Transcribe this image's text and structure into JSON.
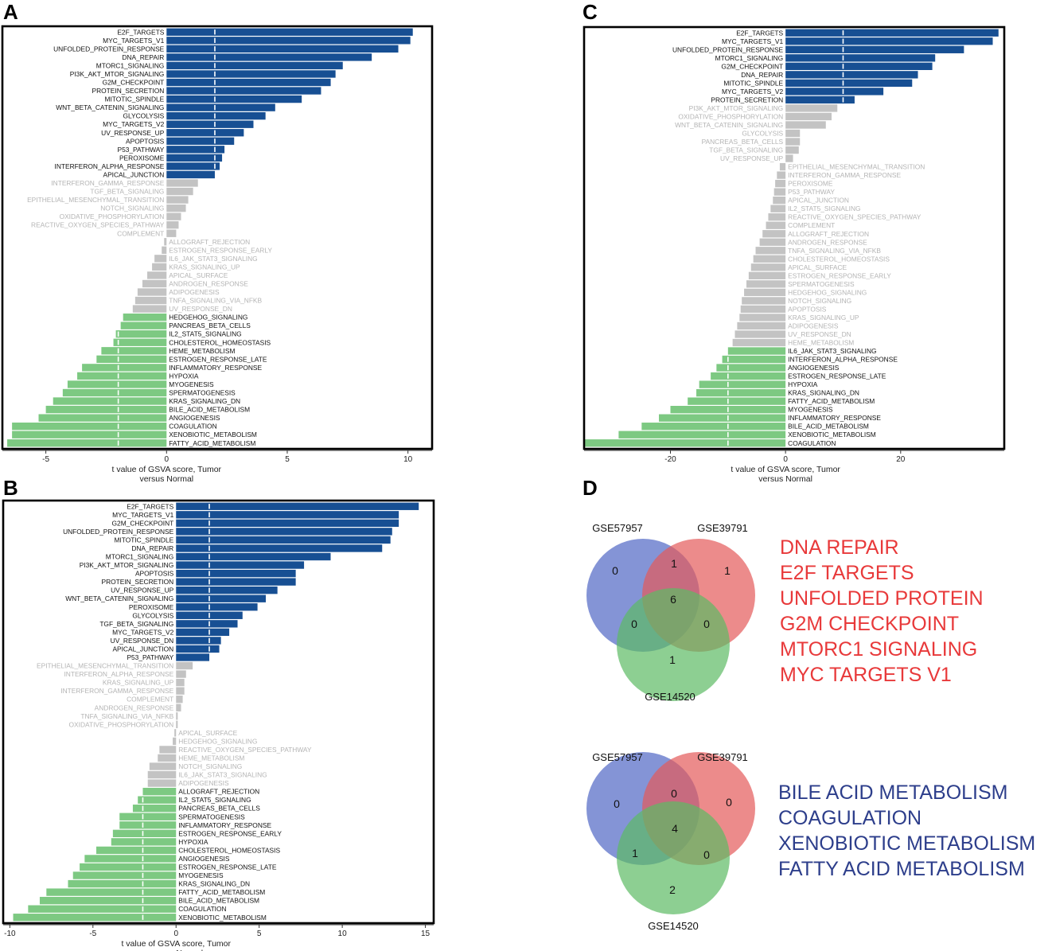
{
  "panels": [
    {
      "letter": "A"
    },
    {
      "letter": "B"
    },
    {
      "letter": "C"
    },
    {
      "letter": "D"
    }
  ],
  "colors": {
    "up": "#174f93",
    "down": "#7dc982",
    "ns": "#c3c3c3",
    "nsLabel": "#b4b4b4",
    "sigLabel": "#111111",
    "threshold": "#ffffff",
    "upText": "#e8393a",
    "downText": "#2d3e8b",
    "vennBlue": "rgba(80,102,196,0.70)",
    "vennRed": "rgba(228,90,90,0.70)",
    "vennGreen": "rgba(92,186,100,0.70)"
  },
  "chart_data": [
    {
      "panel": "A",
      "type": "bar",
      "orientation": "horizontal",
      "xlabel": "t value of GSVA score, Tumor\nversus Normal",
      "xlim": [
        -6.8,
        11
      ],
      "xticks": [
        -5,
        0,
        5,
        10
      ],
      "xtick_labels": [
        "-5",
        "0",
        "5",
        "10"
      ],
      "threshold": 2,
      "categories": [
        "E2F_TARGETS",
        "MYC_TARGETS_V1",
        "UNFOLDED_PROTEIN_RESPONSE",
        "DNA_REPAIR",
        "MTORC1_SIGNALING",
        "PI3K_AKT_MTOR_SIGNALING",
        "G2M_CHECKPOINT",
        "PROTEIN_SECRETION",
        "MITOTIC_SPINDLE",
        "WNT_BETA_CATENIN_SIGNALING",
        "GLYCOLYSIS",
        "MYC_TARGETS_V2",
        "UV_RESPONSE_UP",
        "APOPTOSIS",
        "P53_PATHWAY",
        "PEROXISOME",
        "INTERFERON_ALPHA_RESPONSE",
        "APICAL_JUNCTION",
        "INTERFERON_GAMMA_RESPONSE",
        "TGF_BETA_SIGNALING",
        "EPITHELIAL_MESENCHYMAL_TRANSITION",
        "NOTCH_SIGNALING",
        "OXIDATIVE_PHOSPHORYLATION",
        "REACTIVE_OXYGEN_SPECIES_PATHWAY",
        "COMPLEMENT",
        "ALLOGRAFT_REJECTION",
        "ESTROGEN_RESPONSE_EARLY",
        "IL6_JAK_STAT3_SIGNALING",
        "KRAS_SIGNALING_UP",
        "APICAL_SURFACE",
        "ANDROGEN_RESPONSE",
        "ADIPOGENESIS",
        "TNFA_SIGNALING_VIA_NFKB",
        "UV_RESPONSE_DN",
        "HEDGEHOG_SIGNALING",
        "PANCREAS_BETA_CELLS",
        "IL2_STAT5_SIGNALING",
        "CHOLESTEROL_HOMEOSTASIS",
        "HEME_METABOLISM",
        "ESTROGEN_RESPONSE_LATE",
        "INFLAMMATORY_RESPONSE",
        "HYPOXIA",
        "MYOGENESIS",
        "SPERMATOGENESIS",
        "KRAS_SIGNALING_DN",
        "BILE_ACID_METABOLISM",
        "ANGIOGENESIS",
        "COAGULATION",
        "XENOBIOTIC_METABOLISM",
        "FATTY_ACID_METABOLISM"
      ],
      "values": [
        10.2,
        10.1,
        9.6,
        8.5,
        7.3,
        7.0,
        6.8,
        6.4,
        5.6,
        4.5,
        4.1,
        3.6,
        3.2,
        2.8,
        2.4,
        2.3,
        2.2,
        2.0,
        1.3,
        1.1,
        0.9,
        0.8,
        0.6,
        0.5,
        0.4,
        -0.1,
        -0.2,
        -0.5,
        -0.6,
        -0.8,
        -1.0,
        -1.2,
        -1.3,
        -1.4,
        -1.8,
        -1.9,
        -2.1,
        -2.2,
        -2.7,
        -2.9,
        -3.5,
        -3.7,
        -4.1,
        -4.3,
        -4.7,
        -5.0,
        -5.3,
        -6.4,
        -6.4,
        -6.6
      ],
      "groups": [
        "up",
        "up",
        "up",
        "up",
        "up",
        "up",
        "up",
        "up",
        "up",
        "up",
        "up",
        "up",
        "up",
        "up",
        "up",
        "up",
        "up",
        "up",
        "ns",
        "ns",
        "ns",
        "ns",
        "ns",
        "ns",
        "ns",
        "ns",
        "ns",
        "ns",
        "ns",
        "ns",
        "ns",
        "ns",
        "ns",
        "ns",
        "down",
        "down",
        "down",
        "down",
        "down",
        "down",
        "down",
        "down",
        "down",
        "down",
        "down",
        "down",
        "down",
        "down",
        "down",
        "down"
      ]
    },
    {
      "panel": "B",
      "type": "bar",
      "orientation": "horizontal",
      "xlabel": "t value of GSVA score, Tumor\nversus Normal",
      "xlim": [
        -10.4,
        15.5
      ],
      "xticks": [
        -10,
        -5,
        0,
        5,
        10,
        15
      ],
      "xtick_labels": [
        "-10",
        "-5",
        "0",
        "5",
        "10",
        "15"
      ],
      "threshold": 2,
      "categories": [
        "E2F_TARGETS",
        "MYC_TARGETS_V1",
        "G2M_CHECKPOINT",
        "UNFOLDED_PROTEIN_RESPONSE",
        "MITOTIC_SPINDLE",
        "DNA_REPAIR",
        "MTORC1_SIGNALING",
        "PI3K_AKT_MTOR_SIGNALING",
        "APOPTOSIS",
        "PROTEIN_SECRETION",
        "UV_RESPONSE_UP",
        "WNT_BETA_CATENIN_SIGNALING",
        "PEROXISOME",
        "GLYCOLYSIS",
        "TGF_BETA_SIGNALING",
        "MYC_TARGETS_V2",
        "UV_RESPONSE_DN",
        "APICAL_JUNCTION",
        "P53_PATHWAY",
        "EPITHELIAL_MESENCHYMAL_TRANSITION",
        "INTERFERON_ALPHA_RESPONSE",
        "KRAS_SIGNALING_UP",
        "INTERFERON_GAMMA_RESPONSE",
        "COMPLEMENT",
        "ANDROGEN_RESPONSE",
        "TNFA_SIGNALING_VIA_NFKB",
        "OXIDATIVE_PHOSPHORYLATION",
        "APICAL_SURFACE",
        "HEDGEHOG_SIGNALING",
        "REACTIVE_OXYGEN_SPECIES_PATHWAY",
        "HEME_METABOLISM",
        "NOTCH_SIGNALING",
        "IL6_JAK_STAT3_SIGNALING",
        "ADIPOGENESIS",
        "ALLOGRAFT_REJECTION",
        "IL2_STAT5_SIGNALING",
        "PANCREAS_BETA_CELLS",
        "SPERMATOGENESIS",
        "INFLAMMATORY_RESPONSE",
        "ESTROGEN_RESPONSE_EARLY",
        "HYPOXIA",
        "CHOLESTEROL_HOMEOSTASIS",
        "ANGIOGENESIS",
        "ESTROGEN_RESPONSE_LATE",
        "MYOGENESIS",
        "KRAS_SIGNALING_DN",
        "FATTY_ACID_METABOLISM",
        "BILE_ACID_METABOLISM",
        "COAGULATION",
        "XENOBIOTIC_METABOLISM"
      ],
      "values": [
        14.6,
        13.4,
        13.4,
        13.0,
        12.9,
        12.4,
        9.3,
        7.7,
        7.2,
        7.2,
        6.1,
        5.4,
        4.9,
        4.0,
        3.7,
        3.2,
        2.7,
        2.6,
        2.0,
        1.0,
        0.6,
        0.5,
        0.5,
        0.4,
        0.3,
        0.1,
        0.1,
        -0.1,
        -0.2,
        -1.0,
        -1.1,
        -1.6,
        -1.7,
        -1.7,
        -2.0,
        -2.3,
        -2.6,
        -3.4,
        -3.4,
        -3.8,
        -3.9,
        -4.8,
        -5.5,
        -5.8,
        -6.2,
        -6.5,
        -7.8,
        -8.2,
        -8.9,
        -9.8
      ],
      "groups": [
        "up",
        "up",
        "up",
        "up",
        "up",
        "up",
        "up",
        "up",
        "up",
        "up",
        "up",
        "up",
        "up",
        "up",
        "up",
        "up",
        "up",
        "up",
        "up",
        "ns",
        "ns",
        "ns",
        "ns",
        "ns",
        "ns",
        "ns",
        "ns",
        "ns",
        "ns",
        "ns",
        "ns",
        "ns",
        "ns",
        "ns",
        "down",
        "down",
        "down",
        "down",
        "down",
        "down",
        "down",
        "down",
        "down",
        "down",
        "down",
        "down",
        "down",
        "down",
        "down",
        "down"
      ]
    },
    {
      "panel": "C",
      "type": "bar",
      "orientation": "horizontal",
      "xlabel": "t value of GSVA score, Tumor\nversus Normal",
      "xlim": [
        -35,
        38
      ],
      "xticks": [
        -20,
        0,
        20
      ],
      "xtick_labels": [
        "-20",
        "0",
        "20"
      ],
      "threshold": 10,
      "categories": [
        "E2F_TARGETS",
        "MYC_TARGETS_V1",
        "UNFOLDED_PROTEIN_RESPONSE",
        "MTORC1_SIGNALING",
        "G2M_CHECKPOINT",
        "DNA_REPAIR",
        "MITOTIC_SPINDLE",
        "MYC_TARGETS_V2",
        "PROTEIN_SECRETION",
        "PI3K_AKT_MTOR_SIGNALING",
        "OXIDATIVE_PHOSPHORYLATION",
        "WNT_BETA_CATENIN_SIGNALING",
        "GLYCOLYSIS",
        "PANCREAS_BETA_CELLS",
        "TGF_BETA_SIGNALING",
        "UV_RESPONSE_UP",
        "EPITHELIAL_MESENCHYMAL_TRANSITION",
        "INTERFERON_GAMMA_RESPONSE",
        "PEROXISOME",
        "P53_PATHWAY",
        "APICAL_JUNCTION",
        "IL2_STAT5_SIGNALING",
        "REACTIVE_OXYGEN_SPECIES_PATHWAY",
        "COMPLEMENT",
        "ALLOGRAFT_REJECTION",
        "ANDROGEN_RESPONSE",
        "TNFA_SIGNALING_VIA_NFKB",
        "CHOLESTEROL_HOMEOSTASIS",
        "APICAL_SURFACE",
        "ESTROGEN_RESPONSE_EARLY",
        "SPERMATOGENESIS",
        "HEDGEHOG_SIGNALING",
        "NOTCH_SIGNALING",
        "APOPTOSIS",
        "KRAS_SIGNALING_UP",
        "ADIPOGENESIS",
        "UV_RESPONSE_DN",
        "HEME_METABOLISM",
        "IL6_JAK_STAT3_SIGNALING",
        "INTERFERON_ALPHA_RESPONSE",
        "ANGIOGENESIS",
        "ESTROGEN_RESPONSE_LATE",
        "HYPOXIA",
        "KRAS_SIGNALING_DN",
        "FATTY_ACID_METABOLISM",
        "MYOGENESIS",
        "INFLAMMATORY_RESPONSE",
        "BILE_ACID_METABOLISM",
        "XENOBIOTIC_METABOLISM",
        "COAGULATION"
      ],
      "values": [
        37.0,
        36.0,
        31.0,
        26.0,
        25.5,
        23.0,
        22.0,
        17.0,
        12.0,
        9.0,
        8.0,
        7.0,
        2.5,
        2.5,
        2.3,
        1.3,
        -1.0,
        -1.5,
        -1.8,
        -2.0,
        -2.2,
        -2.6,
        -3.0,
        -3.4,
        -4.0,
        -4.5,
        -5.2,
        -5.6,
        -6.0,
        -6.4,
        -6.8,
        -7.2,
        -7.6,
        -7.8,
        -8.0,
        -8.4,
        -8.8,
        -9.2,
        -10.0,
        -11.0,
        -12.0,
        -13.0,
        -15.0,
        -15.5,
        -17.0,
        -20.0,
        -22.0,
        -25.0,
        -29.0,
        -35.0
      ],
      "groups": [
        "up",
        "up",
        "up",
        "up",
        "up",
        "up",
        "up",
        "up",
        "up",
        "ns",
        "ns",
        "ns",
        "ns",
        "ns",
        "ns",
        "ns",
        "ns",
        "ns",
        "ns",
        "ns",
        "ns",
        "ns",
        "ns",
        "ns",
        "ns",
        "ns",
        "ns",
        "ns",
        "ns",
        "ns",
        "ns",
        "ns",
        "ns",
        "ns",
        "ns",
        "ns",
        "ns",
        "ns",
        "down",
        "down",
        "down",
        "down",
        "down",
        "down",
        "down",
        "down",
        "down",
        "down",
        "down",
        "down"
      ]
    }
  ],
  "venns": [
    {
      "set_labels": [
        "GSE57957",
        "GSE39791",
        "GSE14520"
      ],
      "counts": {
        "a_only": "0",
        "b_only": "1",
        "c_only": "1",
        "ab": "1",
        "ac": "0",
        "bc": "0",
        "abc": "6"
      },
      "pathways": [
        "DNA REPAIR",
        "E2F TARGETS",
        "UNFOLDED PROTEIN",
        "G2M CHECKPOINT",
        "MTORC1 SIGNALING",
        "MYC TARGETS V1"
      ]
    },
    {
      "set_labels": [
        "GSE57957",
        "GSE39791",
        "GSE14520"
      ],
      "counts": {
        "a_only": "0",
        "b_only": "0",
        "c_only": "2",
        "ab": "0",
        "ac": "1",
        "bc": "0",
        "abc": "4"
      },
      "pathways": [
        "BILE ACID METABOLISM",
        "COAGULATION",
        "XENOBIOTIC METABOLISM",
        "FATTY ACID METABOLISM"
      ]
    }
  ]
}
